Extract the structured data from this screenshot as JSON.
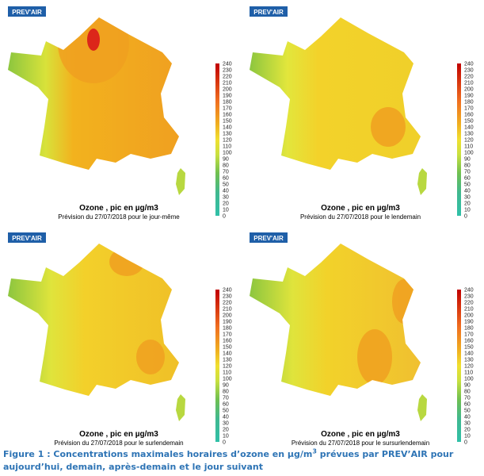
{
  "figures": [
    {
      "logo": "PREV'AIR",
      "title": "Ozone , pic en µg/m3",
      "subtitle": "Prévision du 27/07/2018 pour le jour-même"
    },
    {
      "logo": "PREV'AIR",
      "title": "Ozone , pic en µg/m3",
      "subtitle": "Prévision du 27/07/2018 pour le lendemain"
    },
    {
      "logo": "PREV'AIR",
      "title": "Ozone , pic en µg/m3",
      "subtitle": "Prévision du 27/07/2018 pour le surlendemain"
    },
    {
      "logo": "PREV'AIR",
      "title": "Ozone , pic en µg/m3",
      "subtitle": "Prévision du 27/07/2018 pour le sursurlendemain"
    }
  ],
  "scale_ticks": [
    240,
    230,
    220,
    210,
    200,
    190,
    180,
    170,
    160,
    150,
    140,
    130,
    120,
    110,
    100,
    90,
    80,
    70,
    60,
    50,
    40,
    30,
    20,
    10,
    0
  ],
  "caption": {
    "text": "Figure 1 : Concentrations maximales horaires d’ozone en µg/m",
    "sup": "3",
    "rest": " prévues par PREV’AIR pour aujourd’hui, demain, après-demain et le jour suivant"
  }
}
